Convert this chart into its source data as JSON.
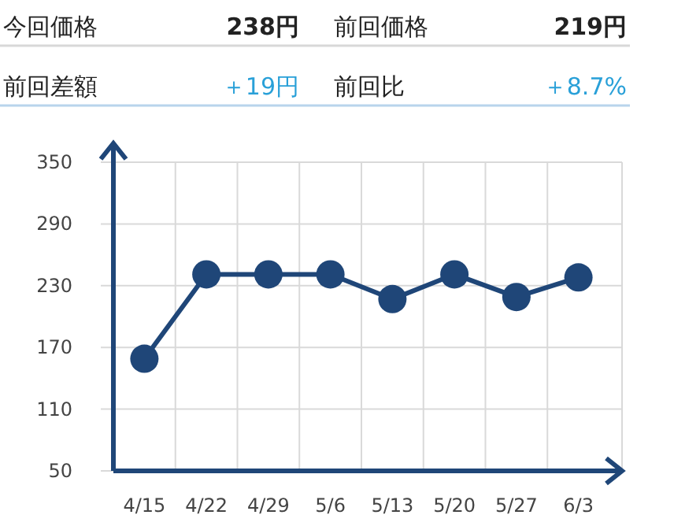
{
  "chart_data": [
    {
      "type": "other",
      "annotations": [
        "今回価格",
        "238円",
        "前回価格",
        "219円",
        "前回差額",
        "＋19円",
        "前回比",
        "＋8.7%"
      ]
    },
    {
      "type": "line",
      "categories": [
        "4/15",
        "4/22",
        "4/29",
        "5/6",
        "5/13",
        "5/20",
        "5/27",
        "6/3"
      ],
      "series": [
        {
          "color": "#1f4678",
          "values": [
            159,
            241,
            241,
            241,
            217,
            241,
            219,
            238
          ]
        }
      ],
      "ylim": [
        50,
        350
      ],
      "yticks": [
        50,
        110,
        170,
        230,
        290,
        350
      ],
      "grid": true,
      "marker": "circle",
      "line_style": "solid"
    }
  ]
}
